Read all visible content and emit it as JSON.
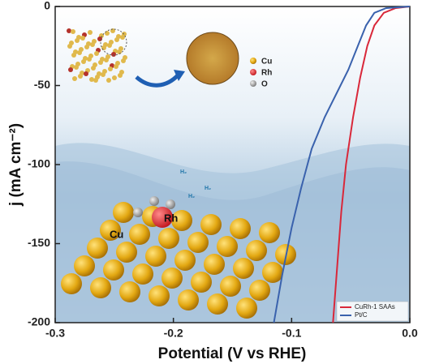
{
  "chart_data": {
    "type": "line",
    "x_label": "Potential (V vs RHE)",
    "y_label": "j (mA cm⁻²)",
    "xlim": [
      -0.3,
      0.0
    ],
    "ylim": [
      -200,
      0
    ],
    "xticks": [
      -0.3,
      -0.2,
      -0.1,
      {
        "value": 0,
        "label": "0.0"
      }
    ],
    "yticks": [
      -200,
      -150,
      -100,
      -50,
      0
    ],
    "legend_position": "lower right",
    "series": [
      {
        "name": "CuRh-1 SAAs",
        "color": "#d9283a",
        "x": [
          -0.065,
          -0.062,
          -0.058,
          -0.054,
          -0.048,
          -0.042,
          -0.036,
          -0.03,
          -0.022,
          -0.012,
          0
        ],
        "values": [
          -200,
          -170,
          -130,
          -100,
          -70,
          -45,
          -25,
          -12,
          -4,
          -1,
          0
        ]
      },
      {
        "name": "Pt/C",
        "color": "#3a62ad",
        "x": [
          -0.115,
          -0.108,
          -0.1,
          -0.092,
          -0.083,
          -0.072,
          -0.062,
          -0.052,
          -0.044,
          -0.037,
          -0.03,
          -0.02,
          0
        ],
        "values": [
          -200,
          -170,
          -140,
          -115,
          -90,
          -70,
          -55,
          -40,
          -25,
          -12,
          -4,
          -1,
          0
        ]
      }
    ],
    "annotations": [
      "Cu",
      "Rh",
      "O",
      "Cu",
      "Rh",
      "H₂",
      "H₂",
      "H₂"
    ]
  }
}
